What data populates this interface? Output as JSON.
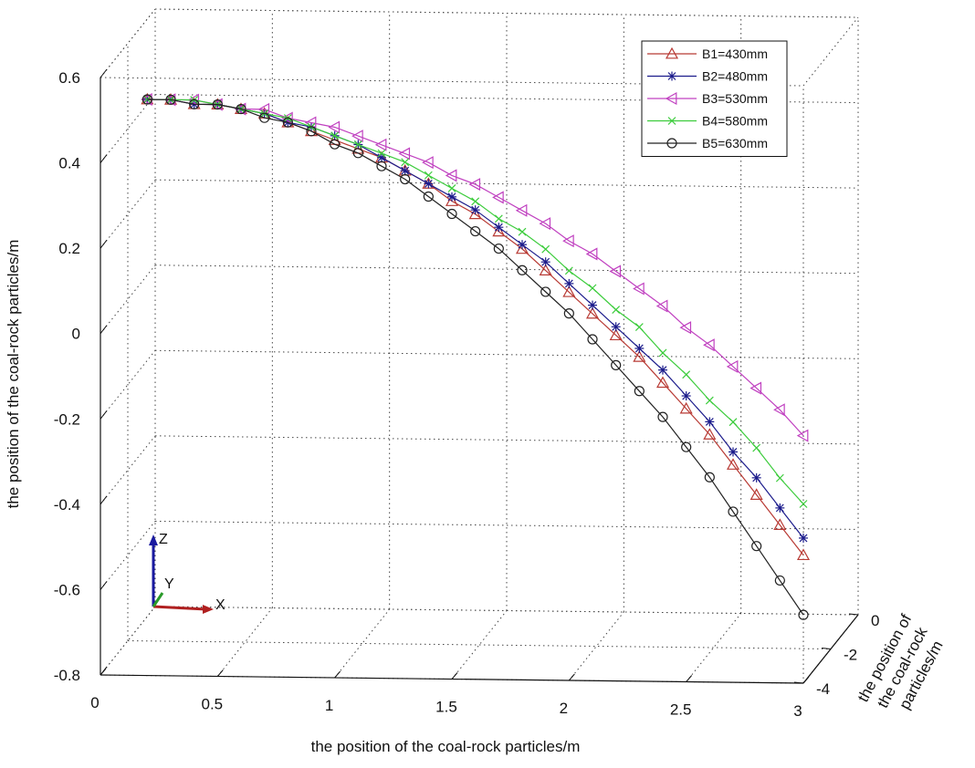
{
  "chart_data": {
    "type": "line3d",
    "xlabel": "the position of the coal-rock particles/m",
    "zlabel": "the position of the coal-rock particles/m",
    "ylabel_lines": [
      "the position of",
      "the coal-rock",
      "particles/m"
    ],
    "triad_labels": {
      "x": "X",
      "y": "Y",
      "z": "Z"
    },
    "xlim": [
      0,
      3
    ],
    "xticks": [
      0,
      0.5,
      1,
      1.5,
      2,
      2.5,
      3
    ],
    "ylim": [
      -4,
      0
    ],
    "yticks": [
      0,
      -2,
      -4
    ],
    "zlim": [
      -0.8,
      0.6
    ],
    "zticks": [
      0.6,
      0.4,
      0.2,
      0,
      -0.2,
      -0.4,
      -0.6,
      -0.8
    ],
    "grid": true,
    "legend_position": "upper-right",
    "x": [
      0.2,
      0.3,
      0.4,
      0.5,
      0.6,
      0.7,
      0.8,
      0.9,
      1.0,
      1.1,
      1.2,
      1.3,
      1.4,
      1.5,
      1.6,
      1.7,
      1.8,
      1.9,
      2.0,
      2.1,
      2.2,
      2.3,
      2.4,
      2.5,
      2.6,
      2.7,
      2.8,
      2.9,
      3.0
    ],
    "series": [
      {
        "name": "B1=430mm",
        "color": "#b83a34",
        "marker": "triangle-up",
        "values": [
          0.55,
          0.55,
          0.54,
          0.54,
          0.53,
          0.52,
          0.5,
          0.48,
          0.46,
          0.44,
          0.42,
          0.39,
          0.36,
          0.32,
          0.29,
          0.25,
          0.21,
          0.16,
          0.11,
          0.06,
          0.01,
          -0.04,
          -0.1,
          -0.16,
          -0.22,
          -0.29,
          -0.36,
          -0.43,
          -0.5
        ]
      },
      {
        "name": "B2=480mm",
        "color": "#1c1c8c",
        "marker": "asterisk",
        "values": [
          0.55,
          0.55,
          0.54,
          0.54,
          0.53,
          0.52,
          0.5,
          0.49,
          0.47,
          0.45,
          0.42,
          0.39,
          0.36,
          0.33,
          0.3,
          0.26,
          0.22,
          0.18,
          0.13,
          0.08,
          0.03,
          -0.02,
          -0.07,
          -0.13,
          -0.19,
          -0.26,
          -0.32,
          -0.39,
          -0.46
        ]
      },
      {
        "name": "B3=530mm",
        "color": "#c040c0",
        "marker": "triangle-left",
        "values": [
          0.55,
          0.55,
          0.55,
          0.54,
          0.53,
          0.53,
          0.51,
          0.5,
          0.49,
          0.47,
          0.45,
          0.43,
          0.41,
          0.38,
          0.36,
          0.33,
          0.3,
          0.27,
          0.23,
          0.2,
          0.16,
          0.12,
          0.08,
          0.03,
          -0.01,
          -0.06,
          -0.11,
          -0.16,
          -0.22
        ]
      },
      {
        "name": "B4=580mm",
        "color": "#3ccc3c",
        "marker": "x",
        "values": [
          0.55,
          0.55,
          0.55,
          0.54,
          0.53,
          0.52,
          0.51,
          0.49,
          0.47,
          0.45,
          0.43,
          0.41,
          0.38,
          0.35,
          0.32,
          0.28,
          0.25,
          0.21,
          0.16,
          0.12,
          0.07,
          0.03,
          -0.03,
          -0.08,
          -0.14,
          -0.19,
          -0.25,
          -0.32,
          -0.38
        ]
      },
      {
        "name": "B5=630mm",
        "color": "#222222",
        "marker": "circle",
        "values": [
          0.55,
          0.55,
          0.54,
          0.54,
          0.53,
          0.51,
          0.5,
          0.48,
          0.45,
          0.43,
          0.4,
          0.37,
          0.33,
          0.29,
          0.25,
          0.21,
          0.16,
          0.11,
          0.06,
          0,
          -0.06,
          -0.12,
          -0.18,
          -0.25,
          -0.32,
          -0.4,
          -0.48,
          -0.56,
          -0.64
        ]
      }
    ]
  }
}
